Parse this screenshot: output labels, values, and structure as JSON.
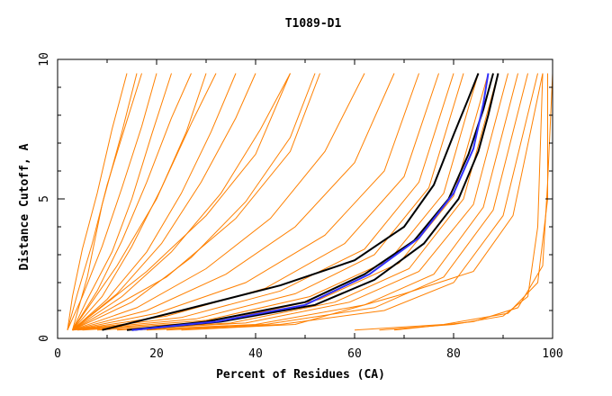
{
  "chart_data": {
    "type": "line",
    "title": "T1089-D1",
    "xlabel": "Percent of Residues (CA)",
    "ylabel": "Distance Cutoff, A",
    "xlim": [
      0,
      100
    ],
    "ylim": [
      0,
      10
    ],
    "x_ticks": [
      0,
      20,
      40,
      60,
      80,
      100
    ],
    "y_ticks": [
      0,
      5,
      10
    ],
    "grid": false,
    "legend": "none",
    "colors": {
      "orange": "#ff8000",
      "black": "#000000",
      "blue": "#3030ff",
      "frame": "#000000"
    },
    "series": [
      {
        "color": "orange",
        "points": [
          [
            2,
            0.3
          ],
          [
            3,
            1.5
          ],
          [
            5,
            3.2
          ],
          [
            8,
            5.2
          ],
          [
            11,
            7.5
          ],
          [
            14,
            9.5
          ]
        ]
      },
      {
        "color": "orange",
        "points": [
          [
            2,
            0.3
          ],
          [
            4,
            1.6
          ],
          [
            7,
            3.4
          ],
          [
            10,
            5.5
          ],
          [
            14,
            7.8
          ],
          [
            17,
            9.5
          ]
        ]
      },
      {
        "color": "orange",
        "points": [
          [
            2,
            0.3
          ],
          [
            5,
            1.5
          ],
          [
            9,
            3.3
          ],
          [
            13,
            5.4
          ],
          [
            17,
            7.6
          ],
          [
            20,
            9.5
          ]
        ]
      },
      {
        "color": "orange",
        "points": [
          [
            3,
            0.3
          ],
          [
            6,
            1.4
          ],
          [
            11,
            3.1
          ],
          [
            15,
            5.0
          ],
          [
            19,
            7.3
          ],
          [
            23,
            9.5
          ]
        ]
      },
      {
        "color": "orange",
        "points": [
          [
            3,
            0.3
          ],
          [
            8,
            1.7
          ],
          [
            13,
            3.5
          ],
          [
            18,
            5.6
          ],
          [
            23,
            7.9
          ],
          [
            27,
            9.5
          ]
        ]
      },
      {
        "color": "orange",
        "points": [
          [
            3,
            0.3
          ],
          [
            9,
            1.5
          ],
          [
            15,
            3.3
          ],
          [
            21,
            5.4
          ],
          [
            27,
            7.7
          ],
          [
            32,
            9.5
          ]
        ]
      },
      {
        "color": "orange",
        "points": [
          [
            3,
            0.3
          ],
          [
            10,
            1.4
          ],
          [
            18,
            3.1
          ],
          [
            25,
            5.2
          ],
          [
            31,
            7.4
          ],
          [
            36,
            9.5
          ]
        ]
      },
      {
        "color": "orange",
        "points": [
          [
            3,
            0.3
          ],
          [
            12,
            1.6
          ],
          [
            21,
            3.4
          ],
          [
            29,
            5.6
          ],
          [
            36,
            7.9
          ],
          [
            40,
            9.5
          ]
        ]
      },
      {
        "color": "orange",
        "points": [
          [
            3,
            0.3
          ],
          [
            13,
            1.5
          ],
          [
            23,
            3.1
          ],
          [
            33,
            5.2
          ],
          [
            41,
            7.5
          ],
          [
            47,
            9.5
          ]
        ]
      },
      {
        "color": "orange",
        "points": [
          [
            3,
            0.3
          ],
          [
            15,
            1.3
          ],
          [
            27,
            2.9
          ],
          [
            38,
            4.9
          ],
          [
            47,
            7.2
          ],
          [
            52,
            9.5
          ]
        ]
      },
      {
        "color": "orange",
        "points": [
          [
            3,
            0.3
          ],
          [
            16,
            1.1
          ],
          [
            30,
            2.5
          ],
          [
            43,
            4.3
          ],
          [
            54,
            6.7
          ],
          [
            62,
            9.5
          ]
        ]
      },
      {
        "color": "orange",
        "points": [
          [
            3,
            0.3
          ],
          [
            18,
            1.0
          ],
          [
            34,
            2.3
          ],
          [
            48,
            4.0
          ],
          [
            60,
            6.3
          ],
          [
            68,
            9.5
          ]
        ]
      },
      {
        "color": "orange",
        "points": [
          [
            3,
            0.3
          ],
          [
            20,
            0.9
          ],
          [
            38,
            2.0
          ],
          [
            54,
            3.7
          ],
          [
            66,
            6.0
          ],
          [
            73,
            9.5
          ]
        ]
      },
      {
        "color": "orange",
        "points": [
          [
            3,
            0.3
          ],
          [
            22,
            0.8
          ],
          [
            42,
            1.8
          ],
          [
            58,
            3.4
          ],
          [
            70,
            5.8
          ],
          [
            77,
            9.5
          ]
        ]
      },
      {
        "color": "orange",
        "points": [
          [
            3,
            0.3
          ],
          [
            25,
            0.75
          ],
          [
            45,
            1.7
          ],
          [
            62,
            3.2
          ],
          [
            73,
            5.6
          ],
          [
            80,
            9.5
          ]
        ]
      },
      {
        "color": "orange",
        "points": [
          [
            3,
            0.3
          ],
          [
            28,
            0.7
          ],
          [
            48,
            1.6
          ],
          [
            64,
            3.0
          ],
          [
            75,
            5.4
          ],
          [
            82,
            9.5
          ]
        ]
      },
      {
        "color": "orange",
        "points": [
          [
            4,
            0.3
          ],
          [
            30,
            0.65
          ],
          [
            51,
            1.5
          ],
          [
            67,
            2.8
          ],
          [
            78,
            5.2
          ],
          [
            85,
            9.5
          ]
        ]
      },
      {
        "color": "orange",
        "points": [
          [
            5,
            0.3
          ],
          [
            32,
            0.6
          ],
          [
            53,
            1.4
          ],
          [
            69,
            2.7
          ],
          [
            80,
            5.1
          ],
          [
            87,
            9.5
          ]
        ]
      },
      {
        "color": "orange",
        "points": [
          [
            8,
            0.3
          ],
          [
            35,
            0.55
          ],
          [
            56,
            1.3
          ],
          [
            71,
            2.5
          ],
          [
            82,
            5.0
          ],
          [
            89,
            9.5
          ]
        ]
      },
      {
        "color": "orange",
        "points": [
          [
            12,
            0.3
          ],
          [
            38,
            0.55
          ],
          [
            59,
            1.3
          ],
          [
            73,
            2.4
          ],
          [
            84,
            4.8
          ],
          [
            91,
            9.5
          ]
        ]
      },
      {
        "color": "orange",
        "points": [
          [
            15,
            0.3
          ],
          [
            40,
            0.5
          ],
          [
            62,
            1.2
          ],
          [
            76,
            2.3
          ],
          [
            86,
            4.7
          ],
          [
            93,
            9.5
          ]
        ]
      },
      {
        "color": "orange",
        "points": [
          [
            18,
            0.3
          ],
          [
            42,
            0.5
          ],
          [
            64,
            1.1
          ],
          [
            78,
            2.2
          ],
          [
            88,
            4.6
          ],
          [
            95,
            9.5
          ]
        ]
      },
      {
        "color": "orange",
        "points": [
          [
            22,
            0.3
          ],
          [
            45,
            0.5
          ],
          [
            66,
            1.0
          ],
          [
            80,
            2.0
          ],
          [
            90,
            4.4
          ],
          [
            97,
            9.5
          ]
        ]
      },
      {
        "color": "orange",
        "points": [
          [
            25,
            0.3
          ],
          [
            48,
            0.5
          ],
          [
            70,
            1.6
          ],
          [
            84,
            2.4
          ],
          [
            92,
            4.4
          ],
          [
            98,
            9.5
          ]
        ]
      },
      {
        "color": "orange",
        "points": [
          [
            3,
            0.3
          ],
          [
            6,
            2.2
          ],
          [
            9,
            4.8
          ],
          [
            13,
            7.4
          ],
          [
            16,
            9.5
          ]
        ]
      },
      {
        "color": "orange",
        "points": [
          [
            3,
            0.3
          ],
          [
            12,
            2.6
          ],
          [
            20,
            5.0
          ],
          [
            26,
            7.4
          ],
          [
            30,
            9.5
          ]
        ]
      },
      {
        "color": "orange",
        "points": [
          [
            3,
            0.3
          ],
          [
            18,
            2.4
          ],
          [
            30,
            4.4
          ],
          [
            40,
            6.6
          ],
          [
            47,
            9.5
          ]
        ]
      },
      {
        "color": "orange",
        "points": [
          [
            3,
            0.3
          ],
          [
            22,
            2.2
          ],
          [
            36,
            4.3
          ],
          [
            47,
            6.7
          ],
          [
            53,
            9.5
          ]
        ]
      },
      {
        "color": "orange",
        "points": [
          [
            65,
            0.3
          ],
          [
            80,
            0.5
          ],
          [
            90,
            0.8
          ],
          [
            95,
            1.5
          ],
          [
            97,
            4.0
          ],
          [
            98,
            9.5
          ]
        ]
      },
      {
        "color": "orange",
        "points": [
          [
            60,
            0.3
          ],
          [
            78,
            0.5
          ],
          [
            91,
            0.9
          ],
          [
            97,
            2.0
          ],
          [
            99,
            5.0
          ],
          [
            99,
            9.5
          ]
        ]
      },
      {
        "color": "orange",
        "points": [
          [
            68,
            0.3
          ],
          [
            84,
            0.6
          ],
          [
            93,
            1.1
          ],
          [
            98,
            2.6
          ],
          [
            99,
            5.6
          ],
          [
            100,
            9.5
          ]
        ]
      },
      {
        "color": "black",
        "points": [
          [
            9,
            0.3
          ],
          [
            25,
            1.0
          ],
          [
            45,
            1.9
          ],
          [
            60,
            2.8
          ],
          [
            70,
            4.0
          ],
          [
            76,
            5.5
          ],
          [
            80,
            7.3
          ],
          [
            83,
            8.6
          ],
          [
            85,
            9.5
          ]
        ]
      },
      {
        "color": "black",
        "points": [
          [
            14,
            0.3
          ],
          [
            30,
            0.6
          ],
          [
            50,
            1.3
          ],
          [
            62,
            2.3
          ],
          [
            72,
            3.5
          ],
          [
            79,
            5.0
          ],
          [
            83,
            6.6
          ],
          [
            86,
            8.2
          ],
          [
            88,
            9.5
          ]
        ]
      },
      {
        "color": "black",
        "points": [
          [
            15,
            0.3
          ],
          [
            33,
            0.6
          ],
          [
            52,
            1.2
          ],
          [
            64,
            2.1
          ],
          [
            74,
            3.4
          ],
          [
            81,
            5.0
          ],
          [
            85,
            6.7
          ],
          [
            87,
            8.0
          ],
          [
            89,
            9.5
          ]
        ]
      },
      {
        "color": "blue",
        "points": [
          [
            15,
            0.3
          ],
          [
            32,
            0.6
          ],
          [
            50,
            1.2
          ],
          [
            63,
            2.3
          ],
          [
            73,
            3.6
          ],
          [
            80,
            5.2
          ],
          [
            84,
            6.8
          ],
          [
            86,
            8.4
          ],
          [
            87,
            9.5
          ]
        ]
      }
    ]
  }
}
